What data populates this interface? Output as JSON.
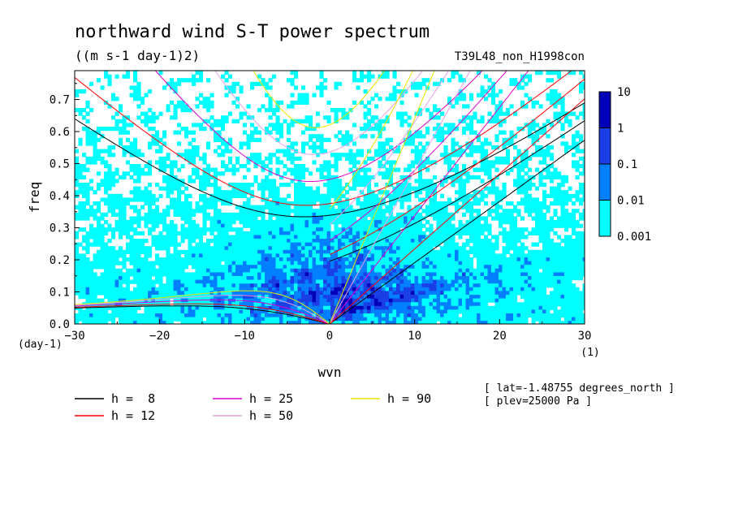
{
  "chart_data": {
    "type": "heatmap",
    "title": "northward wind S-T power spectrum",
    "subtitle": "((m s-1 day-1)2)",
    "run_label": "T39L48_non_H1998con",
    "xlabel": "wvn",
    "ylabel": "freq",
    "x_unit": "(1)",
    "y_unit": "(day-1)",
    "xlim": [
      -30,
      30
    ],
    "ylim": [
      0,
      0.79
    ],
    "x_ticks": [
      -30,
      -20,
      -10,
      0,
      10,
      20,
      30
    ],
    "y_ticks": [
      0.0,
      0.1,
      0.2,
      0.3,
      0.4,
      0.5,
      0.6,
      0.7
    ],
    "colorbar": {
      "levels": [
        "0.001",
        "0.01",
        "0.1",
        "1",
        "10"
      ],
      "colors": [
        "#00ffff",
        "#0080ff",
        "#1a3fe6",
        "#0000b8",
        "#5500bb"
      ]
    },
    "dispersion_curves": [
      {
        "label": "h =  8",
        "h": 8,
        "color": "#000000"
      },
      {
        "label": "h = 12",
        "h": 12,
        "color": "#ff0000"
      },
      {
        "label": "h = 25",
        "h": 25,
        "color": "#dd00cc"
      },
      {
        "label": "h = 50",
        "h": 50,
        "color": "#e6a0e6"
      },
      {
        "label": "h = 90",
        "h": 90,
        "color": "#e6e600"
      }
    ],
    "annotations": [
      "[ lat=-1.48755 degrees_north ]",
      "[ plev=25000 Pa ]"
    ]
  }
}
